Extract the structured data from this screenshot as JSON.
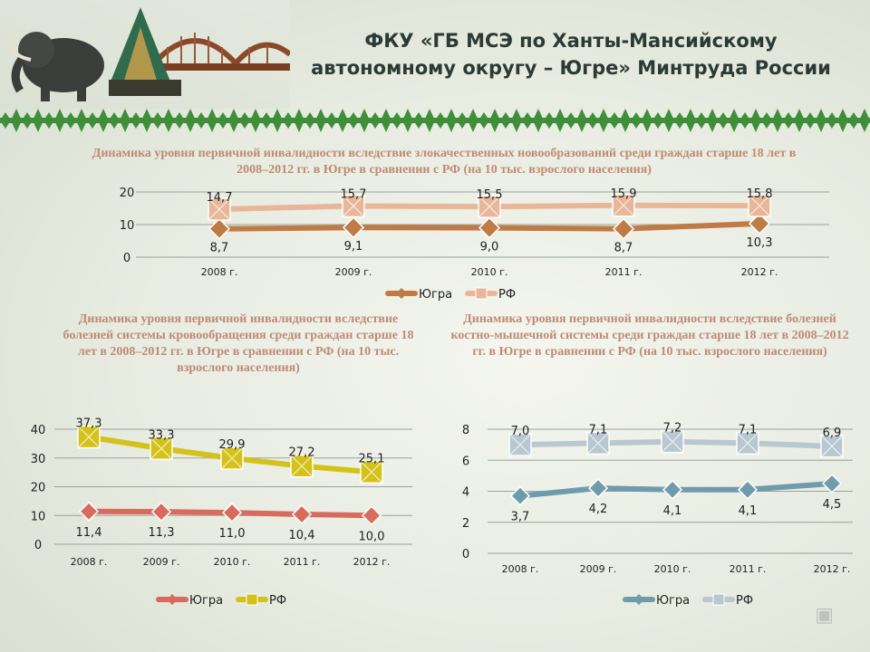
{
  "header": {
    "title_line1": "ФКУ «ГБ МСЭ по Ханты-Мансийскому",
    "title_line2": "автономному округу – Югре» Минтруда России"
  },
  "colors": {
    "ugra_top": "#bf7b45",
    "rf_top": "#e8b79a",
    "ugra_left": "#d86a5e",
    "rf_left": "#d4c21a",
    "ugra_right": "#6f9cad",
    "rf_right": "#b9c7d0",
    "ornament": "#3f8f3a"
  },
  "chart_data": [
    {
      "type": "line",
      "title": "Динамика уровня первичной инвалидности вследствие злокачественных новообразований среди граждан старше 18 лет в 2008–2012 гг. в Югре в сравнении с РФ (на 10 тыс. взрослого населения)",
      "categories": [
        "2008 г.",
        "2009 г.",
        "2010 г.",
        "2011 г.",
        "2012 г."
      ],
      "series": [
        {
          "name": "Югра",
          "values": [
            8.7,
            9.1,
            9.0,
            8.7,
            10.3
          ],
          "labels": [
            "8,7",
            "9,1",
            "9,0",
            "8,7",
            "10,3"
          ]
        },
        {
          "name": "РФ",
          "values": [
            14.7,
            15.7,
            15.5,
            15.9,
            15.8
          ],
          "labels": [
            "14,7",
            "15,7",
            "15,5",
            "15,9",
            "15,8"
          ]
        }
      ],
      "ylim": [
        0,
        20
      ],
      "yticks": [
        "0",
        "10",
        "20"
      ],
      "grid": true,
      "legend": "bottom"
    },
    {
      "type": "line",
      "title": "Динамика уровня первичной инвалидности вследствие болезней системы кровообращения среди граждан старше 18 лет в 2008–2012 гг. в Югре в сравнении с РФ (на 10 тыс. взрослого населения)",
      "categories": [
        "2008 г.",
        "2009 г.",
        "2010 г.",
        "2011 г.",
        "2012 г."
      ],
      "series": [
        {
          "name": "Югра",
          "values": [
            11.4,
            11.3,
            11.0,
            10.4,
            10.0
          ],
          "labels": [
            "11,4",
            "11,3",
            "11,0",
            "10,4",
            "10,0"
          ]
        },
        {
          "name": "РФ",
          "values": [
            37.3,
            33.3,
            29.9,
            27.2,
            25.1
          ],
          "labels": [
            "37,3",
            "33,3",
            "29,9",
            "27,2",
            "25,1"
          ]
        }
      ],
      "ylim": [
        0,
        40
      ],
      "yticks": [
        "0",
        "10",
        "20",
        "30",
        "40"
      ],
      "grid": true,
      "legend": "bottom"
    },
    {
      "type": "line",
      "title": "Динамика уровня первичной инвалидности вследствие болезней костно-мышечной системы среди граждан старше 18 лет в 2008–2012 гг. в Югре в сравнении с РФ (на 10 тыс. взрослого населения)",
      "categories": [
        "2008 г.",
        "2009 г.",
        "2010 г.",
        "2011 г.",
        "2012 г."
      ],
      "series": [
        {
          "name": "Югра",
          "values": [
            3.7,
            4.2,
            4.1,
            4.1,
            4.5
          ],
          "labels": [
            "3,7",
            "4,2",
            "4,1",
            "4,1",
            "4,5"
          ]
        },
        {
          "name": "РФ",
          "values": [
            7.0,
            7.1,
            7.2,
            7.1,
            6.9
          ],
          "labels": [
            "7,0",
            "7,1",
            "7,2",
            "7,1",
            "6,9"
          ]
        }
      ],
      "ylim": [
        0,
        8
      ],
      "yticks": [
        "0",
        "2",
        "4",
        "6",
        "8"
      ],
      "grid": true,
      "legend": "bottom"
    }
  ]
}
